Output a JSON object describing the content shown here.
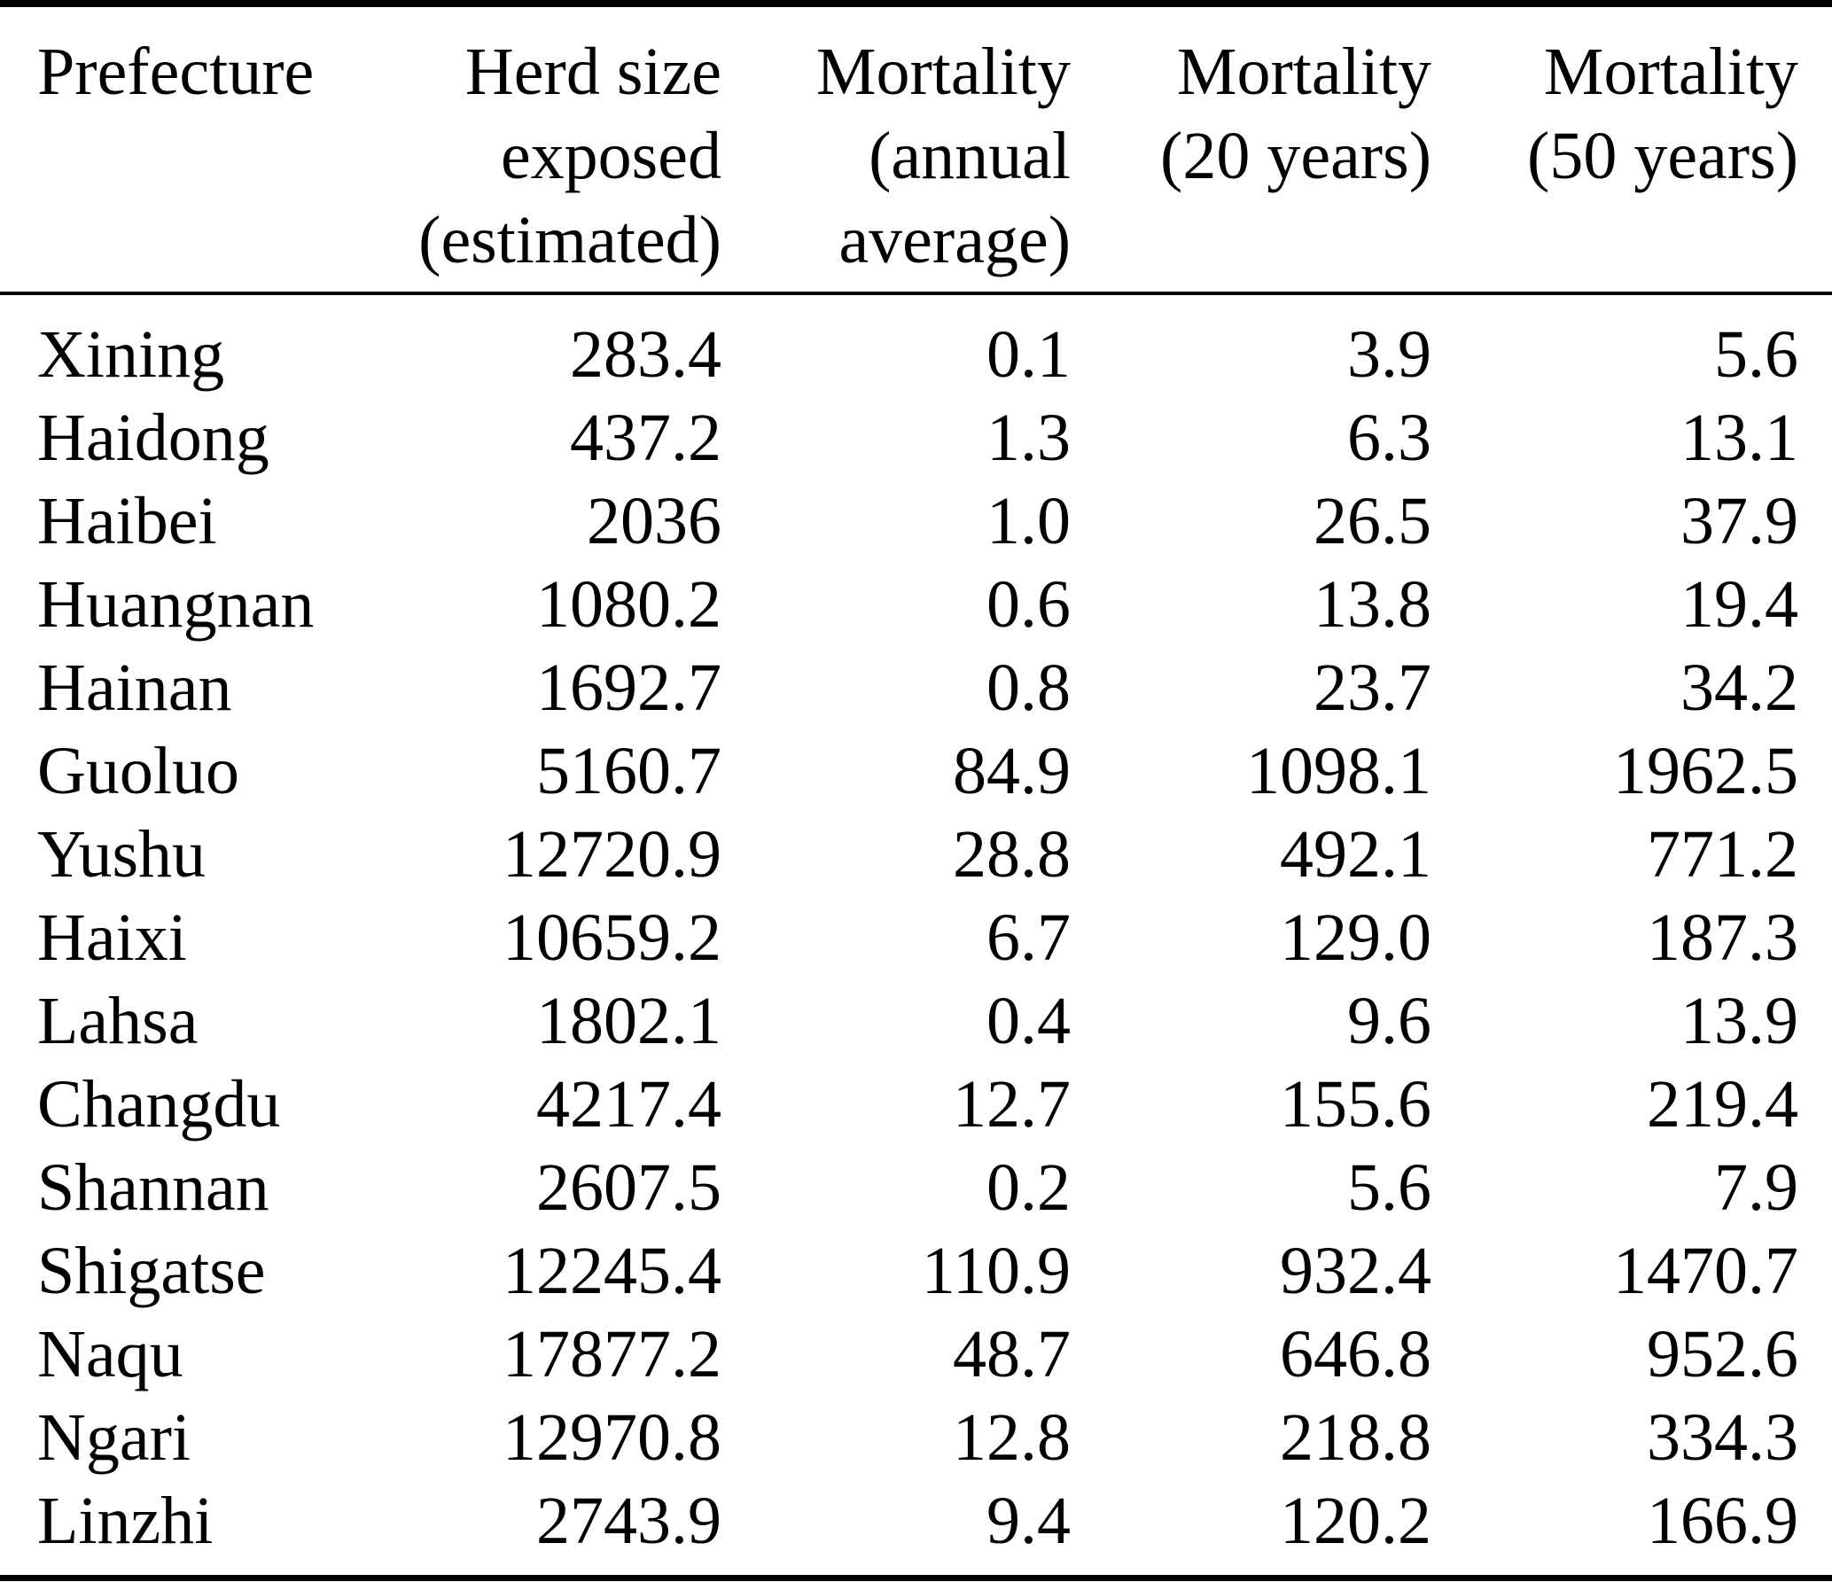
{
  "colors": {
    "background": "#ffffff",
    "text": "#000000",
    "rule": "#000000"
  },
  "table": {
    "columns": [
      {
        "label": "Prefecture"
      },
      {
        "label": "Herd size\nexposed\n(estimated)"
      },
      {
        "label": "Mortality\n(annual\naverage)"
      },
      {
        "label": "Mortality\n(20 years)"
      },
      {
        "label": "Mortality\n(50 years)"
      }
    ],
    "rows": [
      {
        "prefecture": "Xining",
        "herd_size": "283.4",
        "mortality_annual": "0.1",
        "mortality_20y": "3.9",
        "mortality_50y": "5.6"
      },
      {
        "prefecture": "Haidong",
        "herd_size": "437.2",
        "mortality_annual": "1.3",
        "mortality_20y": "6.3",
        "mortality_50y": "13.1"
      },
      {
        "prefecture": "Haibei",
        "herd_size": "2036",
        "mortality_annual": "1.0",
        "mortality_20y": "26.5",
        "mortality_50y": "37.9"
      },
      {
        "prefecture": "Huangnan",
        "herd_size": "1080.2",
        "mortality_annual": "0.6",
        "mortality_20y": "13.8",
        "mortality_50y": "19.4"
      },
      {
        "prefecture": "Hainan",
        "herd_size": "1692.7",
        "mortality_annual": "0.8",
        "mortality_20y": "23.7",
        "mortality_50y": "34.2"
      },
      {
        "prefecture": "Guoluo",
        "herd_size": "5160.7",
        "mortality_annual": "84.9",
        "mortality_20y": "1098.1",
        "mortality_50y": "1962.5"
      },
      {
        "prefecture": "Yushu",
        "herd_size": "12720.9",
        "mortality_annual": "28.8",
        "mortality_20y": "492.1",
        "mortality_50y": "771.2"
      },
      {
        "prefecture": "Haixi",
        "herd_size": "10659.2",
        "mortality_annual": "6.7",
        "mortality_20y": "129.0",
        "mortality_50y": "187.3"
      },
      {
        "prefecture": "Lahsa",
        "herd_size": "1802.1",
        "mortality_annual": "0.4",
        "mortality_20y": "9.6",
        "mortality_50y": "13.9"
      },
      {
        "prefecture": "Changdu",
        "herd_size": "4217.4",
        "mortality_annual": "12.7",
        "mortality_20y": "155.6",
        "mortality_50y": "219.4"
      },
      {
        "prefecture": "Shannan",
        "herd_size": "2607.5",
        "mortality_annual": "0.2",
        "mortality_20y": "5.6",
        "mortality_50y": "7.9"
      },
      {
        "prefecture": "Shigatse",
        "herd_size": "12245.4",
        "mortality_annual": "110.9",
        "mortality_20y": "932.4",
        "mortality_50y": "1470.7"
      },
      {
        "prefecture": "Naqu",
        "herd_size": "17877.2",
        "mortality_annual": "48.7",
        "mortality_20y": "646.8",
        "mortality_50y": "952.6"
      },
      {
        "prefecture": "Ngari",
        "herd_size": "12970.8",
        "mortality_annual": "12.8",
        "mortality_20y": "218.8",
        "mortality_50y": "334.3"
      },
      {
        "prefecture": "Linzhi",
        "herd_size": "2743.9",
        "mortality_annual": "9.4",
        "mortality_20y": "120.2",
        "mortality_50y": "166.9"
      }
    ]
  }
}
